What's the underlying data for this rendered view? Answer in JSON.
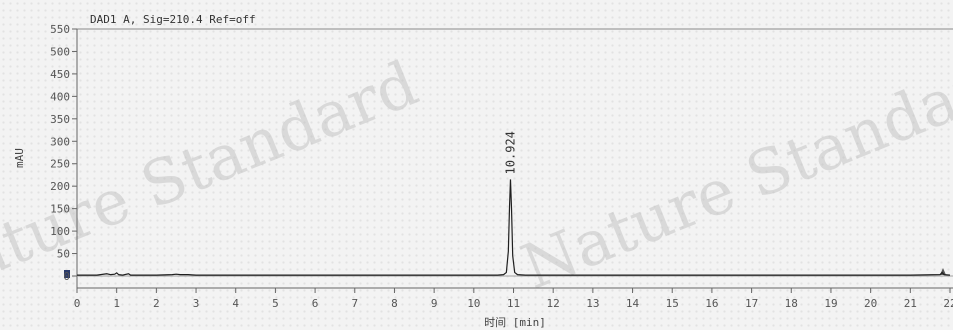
{
  "chart_data": {
    "type": "line",
    "title": "DAD1 A, Sig=210.4 Ref=off",
    "xlabel": "时间 [min]",
    "ylabel": "mAU",
    "xlim": [
      0,
      22
    ],
    "ylim": [
      0,
      550
    ],
    "x_ticks": [
      0,
      1,
      2,
      3,
      4,
      5,
      6,
      7,
      8,
      9,
      10,
      11,
      12,
      13,
      14,
      15,
      16,
      17,
      18,
      19,
      20,
      21,
      22
    ],
    "y_ticks": [
      0,
      50,
      100,
      150,
      200,
      250,
      300,
      350,
      400,
      450,
      500,
      550
    ],
    "series": [
      {
        "x": [
          0,
          0.5,
          0.75,
          0.85,
          0.95,
          1.0,
          1.05,
          1.15,
          1.3,
          1.35,
          1.45,
          2.0,
          2.4,
          2.5,
          2.6,
          2.8,
          3.0,
          5.0,
          8.0,
          10.0,
          10.6,
          10.75,
          10.82,
          10.87,
          10.9,
          10.924,
          10.95,
          10.98,
          11.03,
          11.1,
          11.3,
          13.0,
          17.0,
          21.0,
          21.75,
          21.8,
          21.85,
          22.0
        ],
        "y": [
          2,
          2,
          5,
          3,
          4,
          7,
          3,
          2,
          5,
          2,
          2,
          2,
          3,
          4,
          3,
          3,
          2,
          2,
          2,
          2,
          2,
          3,
          8,
          55,
          155,
          215,
          150,
          45,
          8,
          3,
          2,
          2,
          2,
          2,
          3,
          8,
          3,
          2
        ]
      }
    ],
    "peak_labels": [
      {
        "x": 10.924,
        "y": 215,
        "text": "10.924"
      }
    ],
    "grid": false,
    "legend": "none"
  },
  "watermarks": [
    "Nature Standard",
    "Nature Standard"
  ]
}
